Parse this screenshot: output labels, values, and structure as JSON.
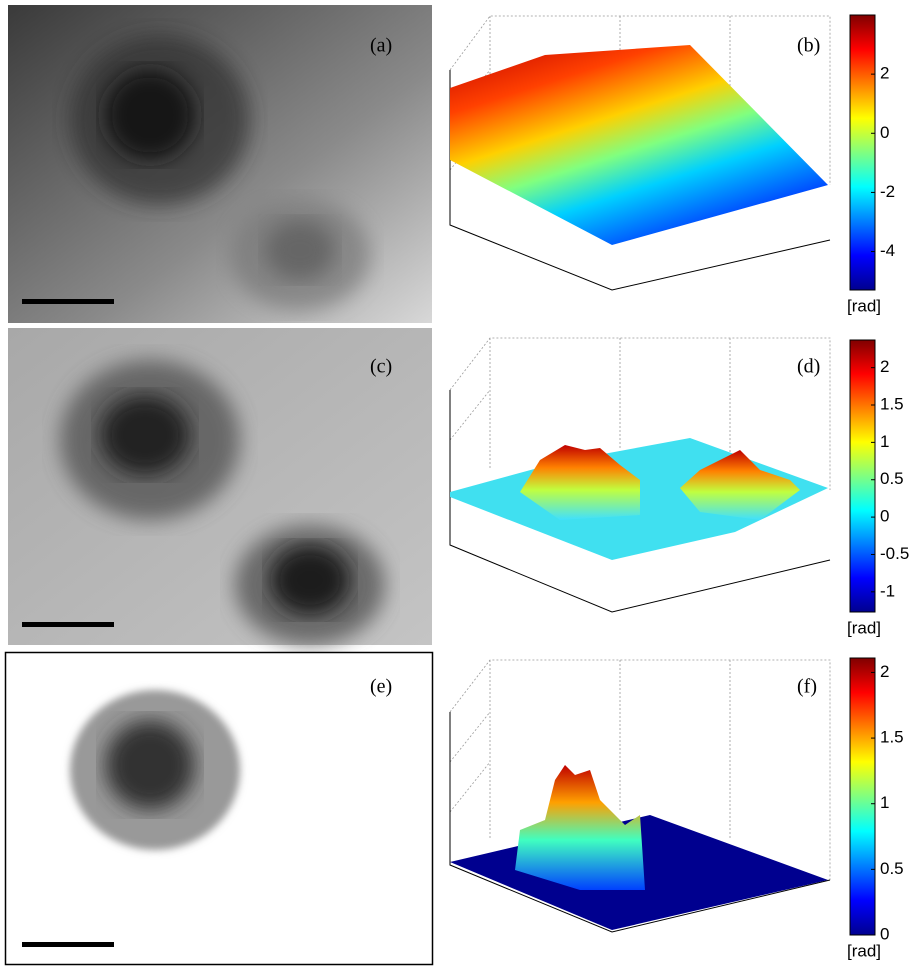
{
  "panels": [
    {
      "label": "(a)"
    },
    {
      "label": "(b)",
      "colorbar": {
        "lim": [
          -5.3,
          4
        ],
        "ticks": [
          2,
          0,
          -2,
          -4
        ],
        "unit": "[rad]"
      }
    },
    {
      "label": "(c)"
    },
    {
      "label": "(d)",
      "colorbar": {
        "lim": [
          -1.27,
          2.37
        ],
        "ticks": [
          2,
          1.5,
          1,
          0.5,
          0,
          -0.5,
          -1
        ],
        "unit": "[rad]"
      }
    },
    {
      "label": "(e)"
    },
    {
      "label": "(f)",
      "colorbar": {
        "lim": [
          0,
          2.11
        ],
        "ticks": [
          2,
          1.5,
          1,
          0.5,
          0
        ],
        "unit": "[rad]"
      }
    }
  ]
}
